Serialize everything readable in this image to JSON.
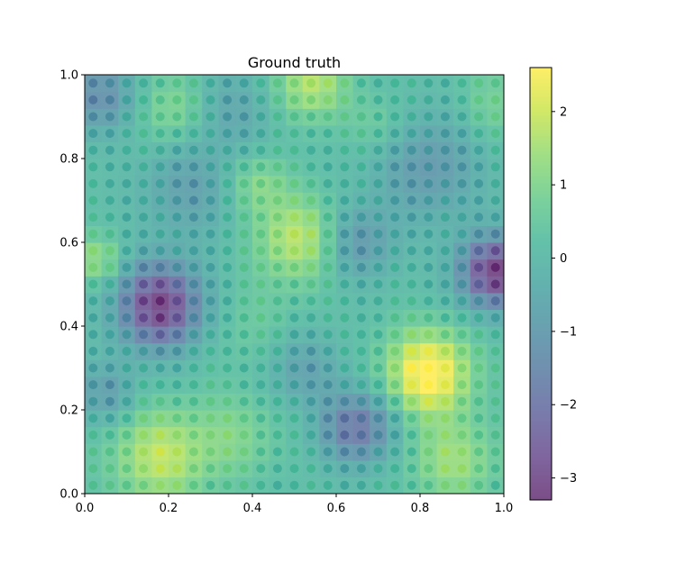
{
  "chart_data": {
    "type": "heatmap",
    "title": "Ground truth",
    "xlabel": "",
    "ylabel": "",
    "xlim": [
      0.0,
      1.0
    ],
    "ylim": [
      0.0,
      1.0
    ],
    "x_ticks": [
      "0.0",
      "0.2",
      "0.4",
      "0.6",
      "0.8",
      "1.0"
    ],
    "y_ticks": [
      "0.0",
      "0.2",
      "0.4",
      "0.6",
      "0.8",
      "1.0"
    ],
    "colorbar": {
      "colormap": "viridis",
      "vmin": -3.3,
      "vmax": 2.6,
      "alpha": 0.7,
      "ticks": [
        "−3",
        "−2",
        "−1",
        "0",
        "1",
        "2"
      ]
    },
    "grid": false,
    "legend": "none",
    "points": {
      "grid_n": 25,
      "x_min": 0.02,
      "x_max": 0.98,
      "y_min": 0.02,
      "y_max": 0.98
    },
    "field": {
      "bias": 0.15,
      "bumps": [
        {
          "x": 0.18,
          "y": 0.45,
          "s": 0.07,
          "a": -3.4
        },
        {
          "x": 0.98,
          "y": 0.53,
          "s": 0.06,
          "a": -3.4
        },
        {
          "x": 0.82,
          "y": 0.29,
          "s": 0.07,
          "a": 2.7
        },
        {
          "x": 0.51,
          "y": 0.61,
          "s": 0.07,
          "a": 1.7
        },
        {
          "x": 0.65,
          "y": 0.16,
          "s": 0.06,
          "a": -2.2
        },
        {
          "x": 0.04,
          "y": 0.95,
          "s": 0.06,
          "a": -1.5
        },
        {
          "x": 0.18,
          "y": 0.09,
          "s": 0.08,
          "a": 1.7
        },
        {
          "x": 0.54,
          "y": 0.98,
          "s": 0.06,
          "a": 1.6
        },
        {
          "x": 0.82,
          "y": 0.78,
          "s": 0.09,
          "a": -1.2
        },
        {
          "x": 0.25,
          "y": 0.73,
          "s": 0.08,
          "a": -1.0
        },
        {
          "x": 0.05,
          "y": 0.24,
          "s": 0.05,
          "a": -1.1
        },
        {
          "x": 0.52,
          "y": 0.3,
          "s": 0.06,
          "a": -1.0
        },
        {
          "x": 0.35,
          "y": 0.92,
          "s": 0.07,
          "a": -0.8
        },
        {
          "x": 0.21,
          "y": 0.92,
          "s": 0.06,
          "a": 1.0
        },
        {
          "x": 0.41,
          "y": 0.74,
          "s": 0.05,
          "a": 1.0
        },
        {
          "x": 0.88,
          "y": 0.08,
          "s": 0.07,
          "a": 1.3
        },
        {
          "x": 0.36,
          "y": 0.14,
          "s": 0.07,
          "a": 0.8
        },
        {
          "x": 0.98,
          "y": 0.93,
          "s": 0.06,
          "a": 0.7
        },
        {
          "x": 0.65,
          "y": 0.6,
          "s": 0.06,
          "a": -1.3
        },
        {
          "x": 0.03,
          "y": 0.56,
          "s": 0.04,
          "a": 1.2
        },
        {
          "x": 0.4,
          "y": 0.4,
          "s": 0.08,
          "a": 0.4
        },
        {
          "x": 0.7,
          "y": 0.88,
          "s": 0.05,
          "a": 0.6
        }
      ]
    }
  }
}
